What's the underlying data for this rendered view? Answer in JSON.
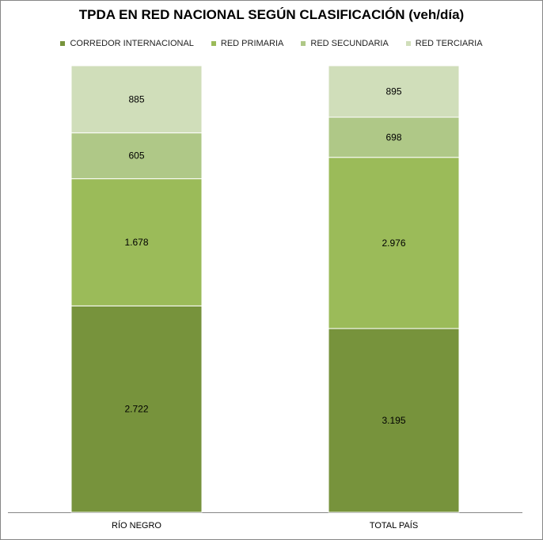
{
  "chart_data": {
    "type": "bar",
    "stacked": true,
    "percent_stacked": true,
    "title": "TPDA EN RED NACIONAL SEGÚN CLASIFICACIÓN (veh/día)",
    "categories": [
      "RÍO NEGRO",
      "TOTAL PAÍS"
    ],
    "series": [
      {
        "name": "CORREDOR INTERNACIONAL",
        "values": [
          2722,
          3195
        ],
        "labels": [
          "2.722",
          "3.195"
        ],
        "color": "#77933c"
      },
      {
        "name": "RED PRIMARIA",
        "values": [
          1678,
          2976
        ],
        "labels": [
          "1.678",
          "2.976"
        ],
        "color": "#9bbb59"
      },
      {
        "name": "RED SECUNDARIA",
        "values": [
          605,
          698
        ],
        "labels": [
          "605",
          "698"
        ],
        "color": "#afc887"
      },
      {
        "name": "RED TERCIARIA",
        "values": [
          885,
          895
        ],
        "labels": [
          "885",
          "895"
        ],
        "color": "#d0deba"
      }
    ],
    "legend_position": "top",
    "grid": false
  }
}
